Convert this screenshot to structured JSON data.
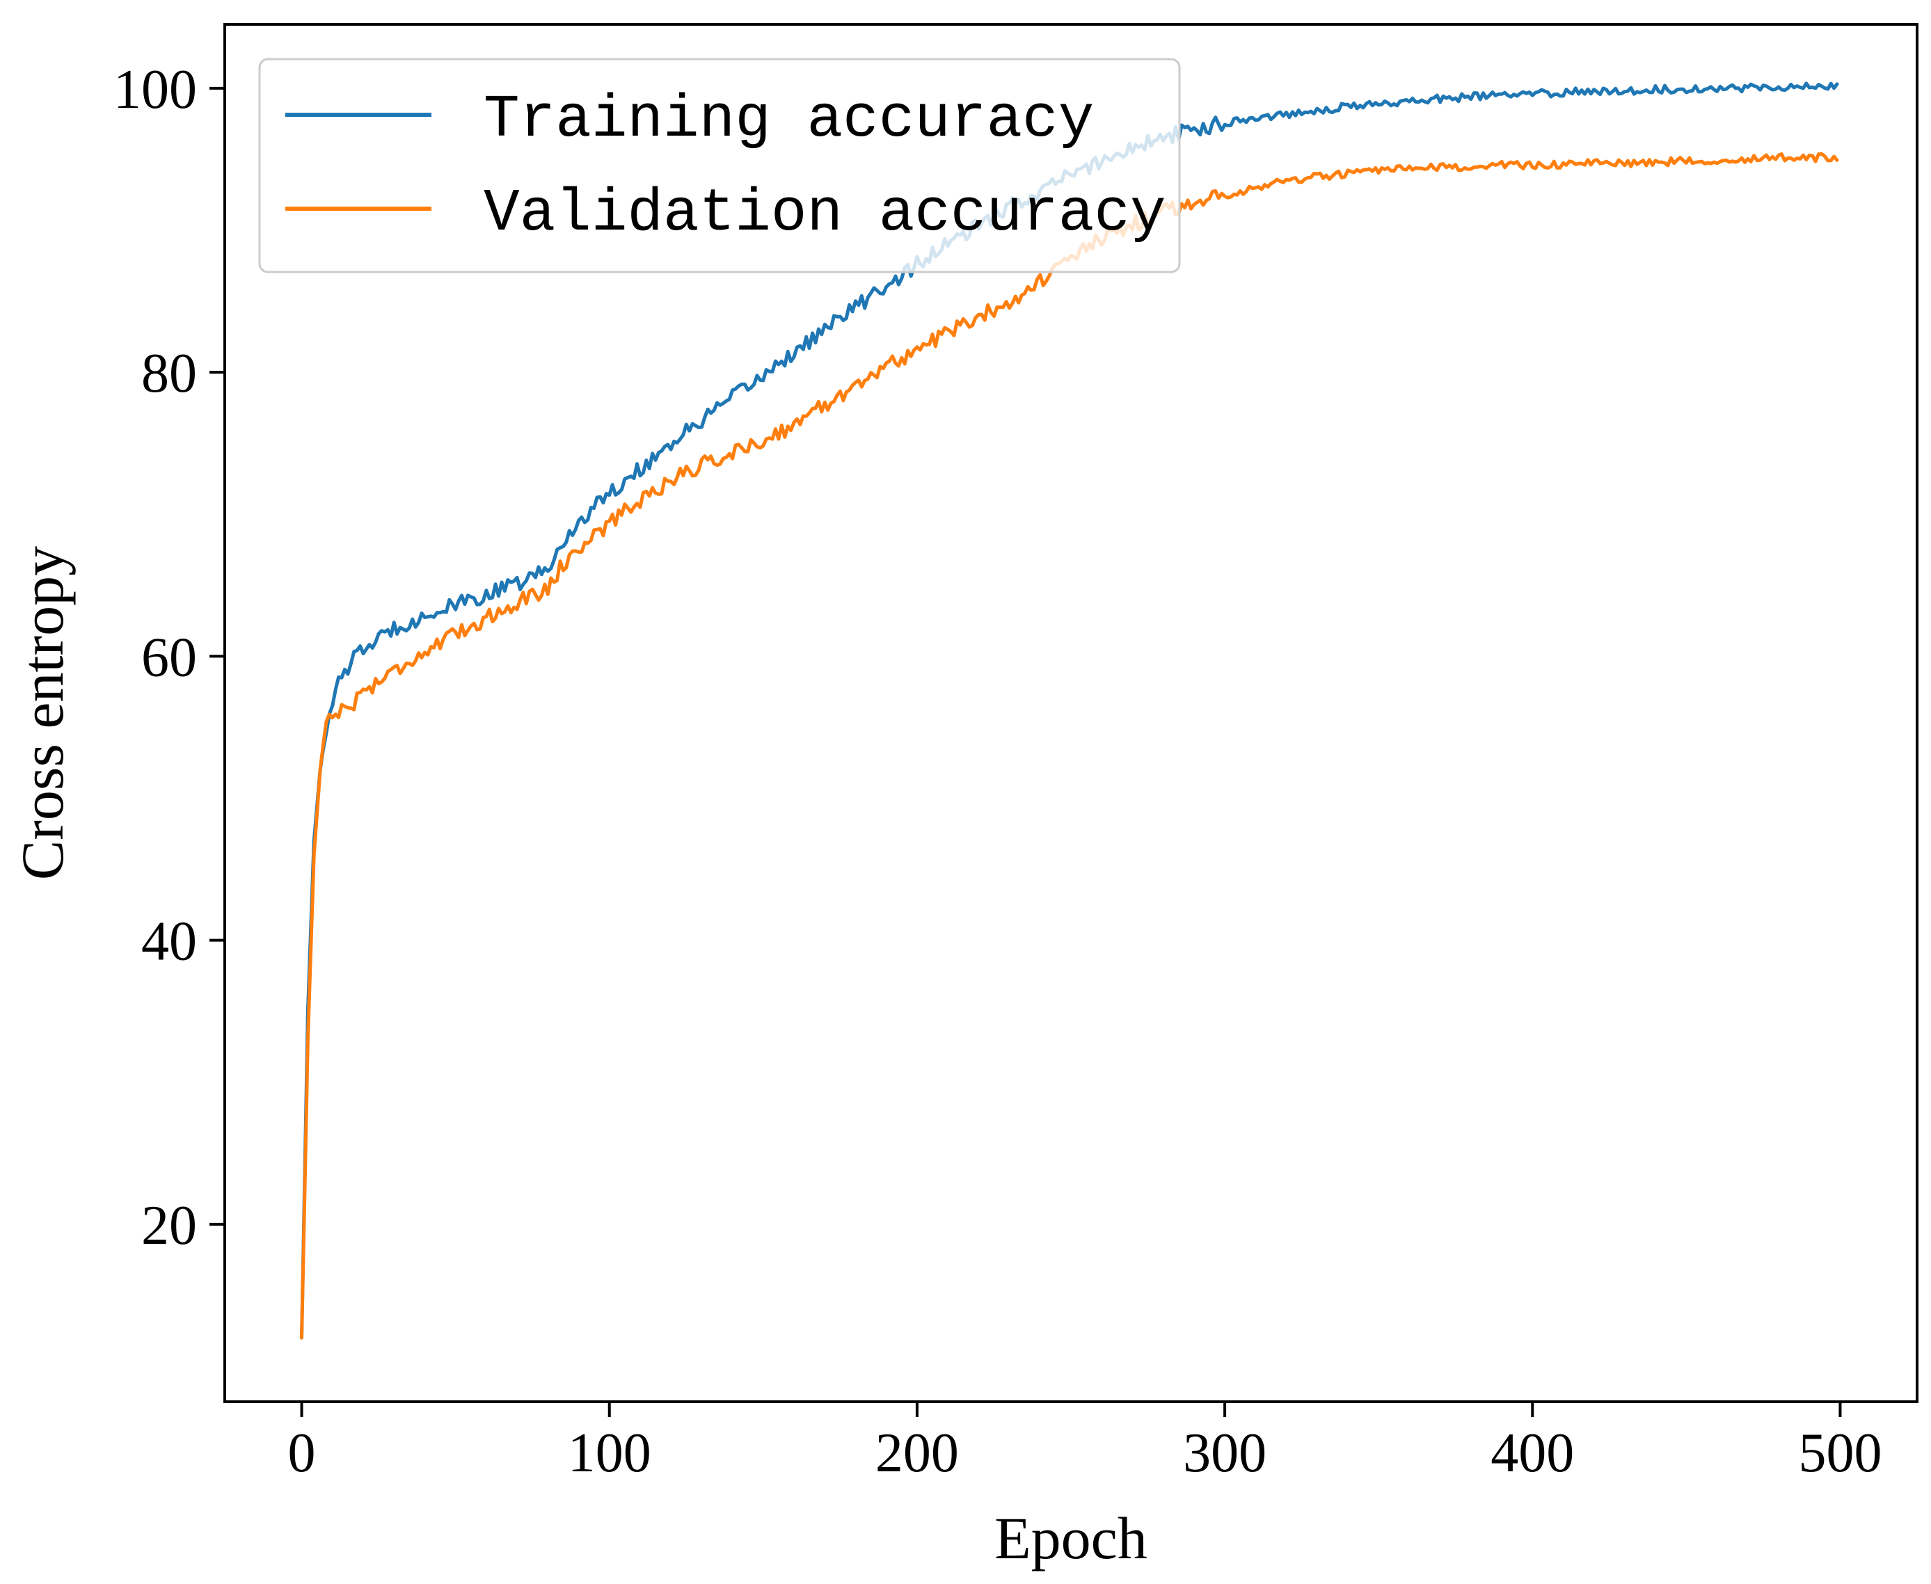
{
  "chart_data": {
    "type": "line",
    "title": "",
    "xlabel": "Epoch",
    "ylabel": "Cross entropy",
    "xlim": [
      -25,
      525
    ],
    "ylim": [
      7.5,
      104.5
    ],
    "xticks": [
      0,
      100,
      200,
      300,
      400,
      500
    ],
    "yticks": [
      20,
      40,
      60,
      80,
      100
    ],
    "grid": false,
    "legend_position": "upper-left",
    "series": [
      {
        "name": "Training accuracy",
        "color": "#1f77b4",
        "key_points": [
          [
            0,
            12
          ],
          [
            2,
            35
          ],
          [
            4,
            47
          ],
          [
            6,
            52
          ],
          [
            8,
            55
          ],
          [
            10,
            57
          ],
          [
            13,
            58.5
          ],
          [
            16,
            59.6
          ],
          [
            20,
            60.5
          ],
          [
            25,
            61.2
          ],
          [
            30,
            62
          ],
          [
            40,
            62.8
          ],
          [
            50,
            63.6
          ],
          [
            60,
            64.3
          ],
          [
            70,
            65.1
          ],
          [
            80,
            66.1
          ],
          [
            84,
            67.6
          ],
          [
            90,
            69.5
          ],
          [
            100,
            71.5
          ],
          [
            110,
            73.2
          ],
          [
            120,
            75
          ],
          [
            130,
            76.6
          ],
          [
            140,
            78.2
          ],
          [
            150,
            79.8
          ],
          [
            160,
            81.4
          ],
          [
            170,
            83
          ],
          [
            180,
            84.6
          ],
          [
            190,
            86.1
          ],
          [
            200,
            87.6
          ],
          [
            210,
            89
          ],
          [
            220,
            90.3
          ],
          [
            230,
            91.6
          ],
          [
            240,
            92.8
          ],
          [
            250,
            93.9
          ],
          [
            260,
            94.9
          ],
          [
            270,
            95.8
          ],
          [
            280,
            96.5
          ],
          [
            290,
            97.1
          ],
          [
            300,
            97.6
          ],
          [
            320,
            98.2
          ],
          [
            340,
            98.7
          ],
          [
            360,
            99.1
          ],
          [
            380,
            99.4
          ],
          [
            400,
            99.6
          ],
          [
            420,
            99.8
          ],
          [
            440,
            99.9
          ],
          [
            460,
            100
          ],
          [
            480,
            100.1
          ],
          [
            499,
            100.1
          ]
        ]
      },
      {
        "name": "Validation accuracy",
        "color": "#ff7f0e",
        "key_points": [
          [
            0,
            12
          ],
          [
            2,
            33
          ],
          [
            4,
            46
          ],
          [
            6,
            52
          ],
          [
            8,
            55.5
          ],
          [
            10,
            56
          ],
          [
            15,
            56.3
          ],
          [
            20,
            57.5
          ],
          [
            30,
            59
          ],
          [
            40,
            60.3
          ],
          [
            50,
            61.5
          ],
          [
            60,
            62.7
          ],
          [
            70,
            63.8
          ],
          [
            80,
            64.8
          ],
          [
            84,
            66.2
          ],
          [
            90,
            67.6
          ],
          [
            100,
            69.4
          ],
          [
            110,
            71
          ],
          [
            120,
            72.4
          ],
          [
            130,
            73.5
          ],
          [
            140,
            74.3
          ],
          [
            150,
            75.2
          ],
          [
            160,
            76.3
          ],
          [
            170,
            77.7
          ],
          [
            180,
            79.1
          ],
          [
            190,
            80.4
          ],
          [
            200,
            81.6
          ],
          [
            210,
            82.8
          ],
          [
            220,
            83.9
          ],
          [
            230,
            85
          ],
          [
            240,
            86.4
          ],
          [
            250,
            88
          ],
          [
            260,
            89.4
          ],
          [
            270,
            90.4
          ],
          [
            280,
            91.3
          ],
          [
            290,
            92
          ],
          [
            300,
            92.5
          ],
          [
            310,
            93
          ],
          [
            320,
            93.5
          ],
          [
            340,
            94
          ],
          [
            360,
            94.3
          ],
          [
            380,
            94.5
          ],
          [
            400,
            94.6
          ],
          [
            420,
            94.7
          ],
          [
            440,
            94.8
          ],
          [
            460,
            94.95
          ],
          [
            480,
            95.1
          ],
          [
            499,
            95.1
          ]
        ]
      }
    ]
  }
}
